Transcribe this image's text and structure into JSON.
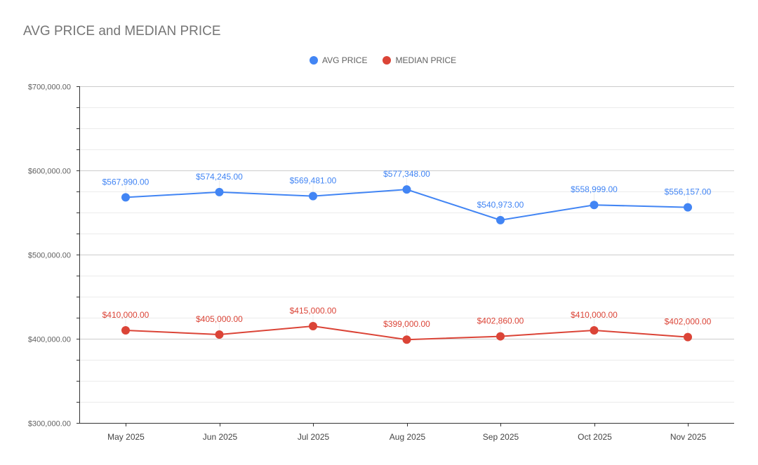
{
  "chart_data": {
    "type": "line",
    "title": "AVG PRICE and MEDIAN PRICE",
    "categories": [
      "May 2025",
      "Jun 2025",
      "Jul 2025",
      "Aug 2025",
      "Sep 2025",
      "Oct 2025",
      "Nov 2025"
    ],
    "series": [
      {
        "name": "AVG PRICE",
        "color": "#4285f4",
        "values": [
          567990,
          574245,
          569481,
          577348,
          540973,
          558999,
          556157
        ],
        "labels": [
          "$567,990.00",
          "$574,245.00",
          "$569,481.00",
          "$577,348.00",
          "$540,973.00",
          "$558,999.00",
          "$556,157.00"
        ]
      },
      {
        "name": "MEDIAN PRICE",
        "color": "#db4437",
        "values": [
          410000,
          405000,
          415000,
          399000,
          402860,
          410000,
          402000
        ],
        "labels": [
          "$410,000.00",
          "$405,000.00",
          "$415,000.00",
          "$399,000.00",
          "$402,860.00",
          "$410,000.00",
          "$402,000.00"
        ]
      }
    ],
    "ylim": [
      300000,
      700000
    ],
    "yticks": [
      {
        "value": 300000,
        "label": "$300,000.00"
      },
      {
        "value": 400000,
        "label": "$400,000.00"
      },
      {
        "value": 500000,
        "label": "$500,000.00"
      },
      {
        "value": 600000,
        "label": "$600,000.00"
      },
      {
        "value": 700000,
        "label": "$700,000.00"
      }
    ],
    "minor_gridlines_per_major": 3,
    "grid": true,
    "legend": "top-center",
    "xlabel": "",
    "ylabel": ""
  }
}
